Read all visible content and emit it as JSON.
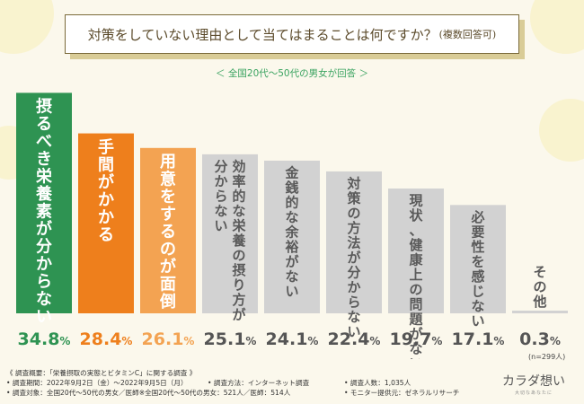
{
  "title": {
    "main": "対策をしていない理由として当てはまることは何ですか？",
    "sub": "(複数回答可)"
  },
  "subtitle": "＜ 全国20代〜50代の男女が回答 ＞",
  "colors": {
    "first": "#2e9352",
    "second": "#ee7f1c",
    "third": "#f3a352",
    "rest": "#d2d2d2",
    "labelLight": "#ffffff",
    "labelDark": "#5a5a5a"
  },
  "chart_data": {
    "type": "bar",
    "title": "対策をしていない理由として当てはまることは何ですか？(複数回答可)",
    "categories": [
      "摂るべき栄養素が分からない",
      "手間がかかる",
      "用意をするのが面倒",
      "効率的な栄養の摂り方が分からない",
      "金銭的な余裕がない",
      "対策の方法が分からない",
      "現状、健康上の問題がない",
      "必要性を感じない",
      "その他"
    ],
    "label_lines": [
      [
        "摂るべき栄養素が分からない"
      ],
      [
        "手間がかかる"
      ],
      [
        "用意をするのが面倒"
      ],
      [
        "効率的な栄養の摂り方が",
        "分からない"
      ],
      [
        "金銭的な余裕がない"
      ],
      [
        "対策の方法が分からない"
      ],
      [
        "現状、健康上の問題がない"
      ],
      [
        "必要性を感じない"
      ],
      [
        "その他"
      ]
    ],
    "values": [
      34.8,
      28.4,
      26.1,
      25.1,
      24.1,
      22.4,
      19.7,
      17.1,
      0.3
    ],
    "value_labels": [
      [
        "34.8",
        "%"
      ],
      [
        "28.4",
        "%"
      ],
      [
        "26.1",
        "%"
      ],
      [
        "25.1",
        "%"
      ],
      [
        "24.1",
        "%"
      ],
      [
        "22.4",
        "%"
      ],
      [
        "19.7",
        "%"
      ],
      [
        "17.1",
        "%"
      ],
      [
        "0.3",
        "%"
      ]
    ],
    "ylim": [
      0,
      35
    ],
    "note": "(n=299人)"
  },
  "footer": {
    "heading": "《 調査概要：「栄養摂取の実態とビタミンC」に関する調査 》",
    "rows": [
      [
        "• 調査期間：2022年9月2日（金）〜2022年9月5日（月）",
        "• 調査方法：インターネット調査",
        "• 調査人数：1,035人"
      ],
      [
        "• 調査対象：全国20代〜50代の男女／医師※全国20代〜50代の男女：521人／医師：514人",
        "",
        "• モニター提供元：ゼネラルリサーチ"
      ]
    ]
  },
  "logo": {
    "name": "カラダ想い",
    "tag": "大切なあなたに"
  }
}
